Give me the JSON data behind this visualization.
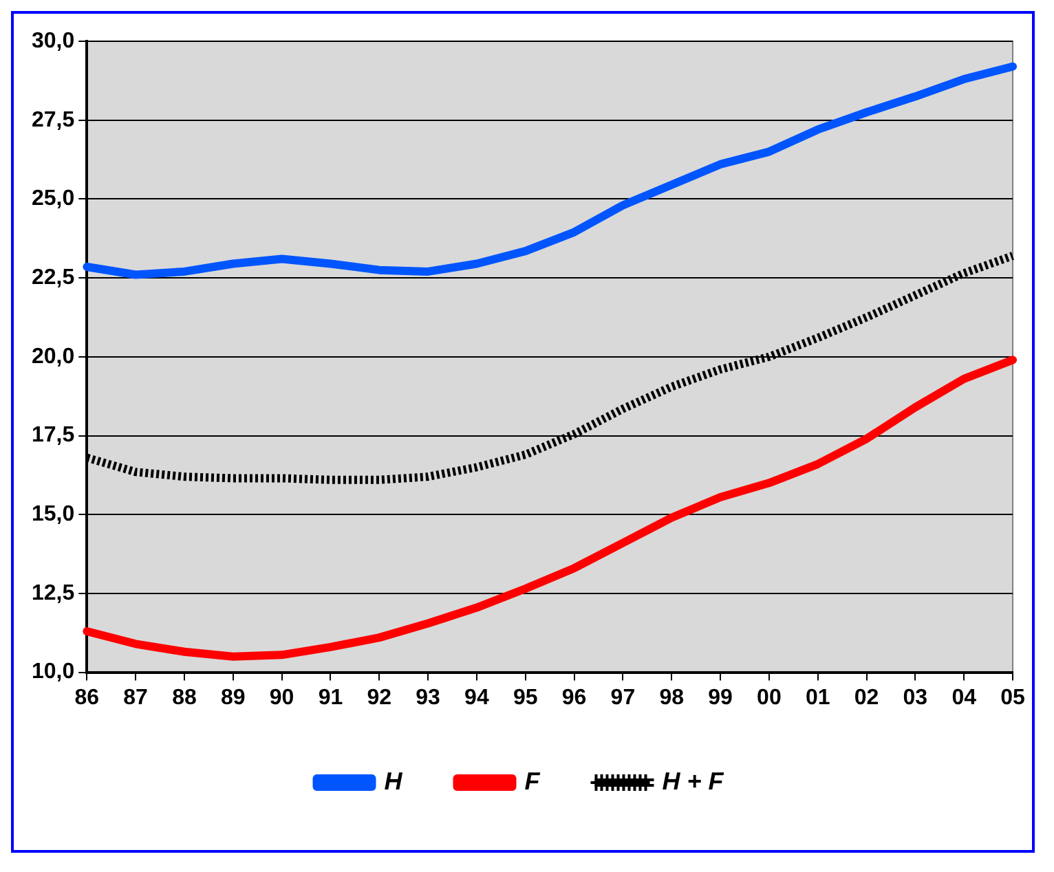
{
  "chart_data": {
    "type": "line",
    "categories": [
      "86",
      "87",
      "88",
      "89",
      "90",
      "91",
      "92",
      "93",
      "94",
      "95",
      "96",
      "97",
      "98",
      "99",
      "00",
      "01",
      "02",
      "03",
      "04",
      "05"
    ],
    "series": [
      {
        "name": "H",
        "color": "#0055ff",
        "values": [
          22.85,
          22.6,
          22.7,
          22.95,
          23.1,
          22.95,
          22.75,
          22.7,
          22.95,
          23.35,
          23.95,
          24.8,
          25.45,
          26.1,
          26.5,
          27.2,
          27.75,
          28.25,
          28.8,
          29.2
        ]
      },
      {
        "name": "F",
        "color": "#ff0000",
        "values": [
          11.3,
          10.9,
          10.65,
          10.5,
          10.55,
          10.8,
          11.1,
          11.55,
          12.05,
          12.65,
          13.3,
          14.1,
          14.9,
          15.55,
          16.0,
          16.6,
          17.4,
          18.4,
          19.3,
          19.9
        ]
      },
      {
        "name": "H + F",
        "color": "#000000",
        "line_style": "dotted",
        "values": [
          16.8,
          16.35,
          16.2,
          16.15,
          16.15,
          16.1,
          16.1,
          16.2,
          16.5,
          16.9,
          17.55,
          18.35,
          19.05,
          19.6,
          20.0,
          20.6,
          21.25,
          21.95,
          22.65,
          23.2
        ]
      }
    ],
    "ylim": [
      10,
      30
    ],
    "yticks": [
      {
        "value": 10,
        "label": "10,0"
      },
      {
        "value": 12.5,
        "label": "12,5"
      },
      {
        "value": 15,
        "label": "15,0"
      },
      {
        "value": 17.5,
        "label": "17,5"
      },
      {
        "value": 20,
        "label": "20,0"
      },
      {
        "value": 22.5,
        "label": "22,5"
      },
      {
        "value": 25,
        "label": "25,0"
      },
      {
        "value": 27.5,
        "label": "27,5"
      },
      {
        "value": 30,
        "label": "30,0"
      }
    ],
    "grid": "y",
    "legend": "bottom",
    "marker": "none",
    "line_style": "solid"
  }
}
